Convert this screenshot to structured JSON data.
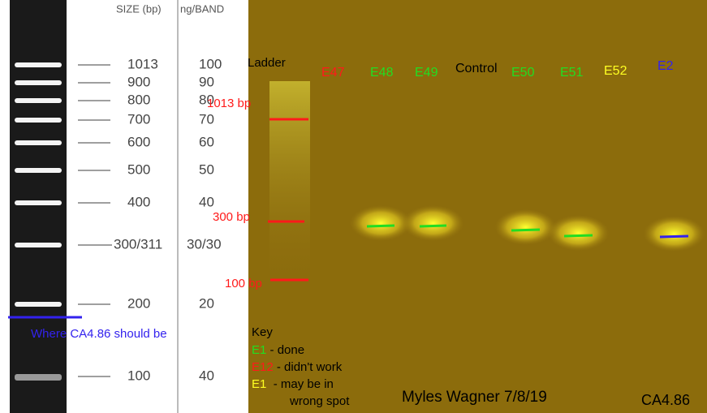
{
  "ladder_reference": {
    "size_header": "SIZE (bp)",
    "ng_header": "ng/BAND",
    "rows": [
      {
        "size": "1013",
        "ng": "100"
      },
      {
        "size": "900",
        "ng": "90"
      },
      {
        "size": "800",
        "ng": "80"
      },
      {
        "size": "700",
        "ng": "70"
      },
      {
        "size": "600",
        "ng": "60"
      },
      {
        "size": "500",
        "ng": "50"
      },
      {
        "size": "400",
        "ng": "40"
      },
      {
        "size": "300/311",
        "ng": "30/30"
      },
      {
        "size": "200",
        "ng": "20"
      },
      {
        "size": "100",
        "ng": "40"
      }
    ],
    "note": "Where CA4.86 should be"
  },
  "gel": {
    "lanes": [
      {
        "label": "Ladder",
        "color": "#000000"
      },
      {
        "label": "E47",
        "color": "#ff1a1a"
      },
      {
        "label": "E48",
        "color": "#22dd22"
      },
      {
        "label": "E49",
        "color": "#22dd22"
      },
      {
        "label": "Control",
        "color": "#000000"
      },
      {
        "label": "E50",
        "color": "#22dd22"
      },
      {
        "label": "E51",
        "color": "#22dd22"
      },
      {
        "label": "E52",
        "color": "#ffff22"
      },
      {
        "label": "E2",
        "color": "#3322ee"
      }
    ],
    "size_markers": [
      "1013 bp",
      "300 bp",
      "100 bp"
    ],
    "key": {
      "title": "Key",
      "entries": [
        {
          "tag": "E1",
          "text": " - done",
          "color": "#22dd22"
        },
        {
          "tag": "E12",
          "text": " - didn't work",
          "color": "#ff1a1a"
        },
        {
          "tag": "E1",
          "text": "  - may be in",
          "color": "#ffff22"
        }
      ],
      "continuation": "wrong spot"
    },
    "author": "Myles Wagner 7/8/19",
    "sample": "CA4.86"
  }
}
